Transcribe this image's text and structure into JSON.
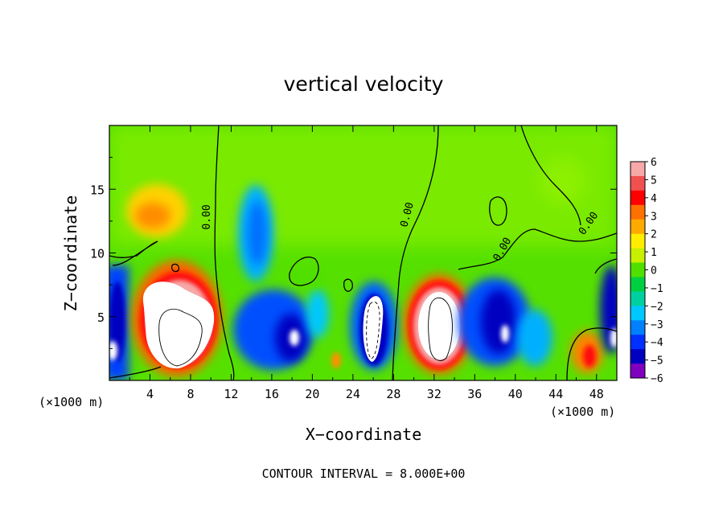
{
  "chart_data": {
    "type": "heatmap",
    "title": "vertical velocity",
    "xlabel": "X−coordinate",
    "ylabel": "Z−coordinate",
    "x_unit_label_left": "(×1000 m)",
    "x_unit_label_right": "(×1000 m)",
    "footer": "CONTOUR INTERVAL = 8.000E+00",
    "xlim": [
      0,
      50
    ],
    "ylim": [
      0,
      20
    ],
    "x_ticks": [
      4,
      8,
      12,
      16,
      20,
      24,
      28,
      32,
      36,
      40,
      44,
      48
    ],
    "y_ticks": [
      5,
      10,
      15
    ],
    "colorbar": {
      "ticks": [
        "6",
        "5",
        "4",
        "3",
        "2",
        "1",
        "0",
        "−1",
        "−2",
        "−3",
        "−4",
        "−5",
        "−6"
      ],
      "colors": [
        "#f7a8a8",
        "#f05050",
        "#ff0000",
        "#ff7000",
        "#ffaa00",
        "#ffee00",
        "#c8f000",
        "#4fe000",
        "#00d040",
        "#00d0a0",
        "#00c8ff",
        "#0080ff",
        "#0030ff",
        "#0000c0",
        "#8000c0"
      ],
      "range": [
        -6,
        6
      ]
    },
    "contour_labels": [
      "0.00",
      "0.00",
      "0.00",
      "0.00"
    ],
    "features": [
      {
        "type": "updraft",
        "x_center": 7,
        "z_center": 4.5,
        "value": "> 6"
      },
      {
        "type": "updraft",
        "x_center": 32,
        "z_center": 4.5,
        "value": "> 6"
      },
      {
        "type": "downdraft",
        "x_center": 26,
        "z_center": 4.0,
        "value": "< -6"
      },
      {
        "type": "downdraft",
        "x_center": 0.5,
        "z_center": 2.5,
        "value": "< -6"
      },
      {
        "type": "downdraft",
        "x_center": 49.5,
        "z_center": 3.0,
        "value": "< -6"
      }
    ]
  }
}
